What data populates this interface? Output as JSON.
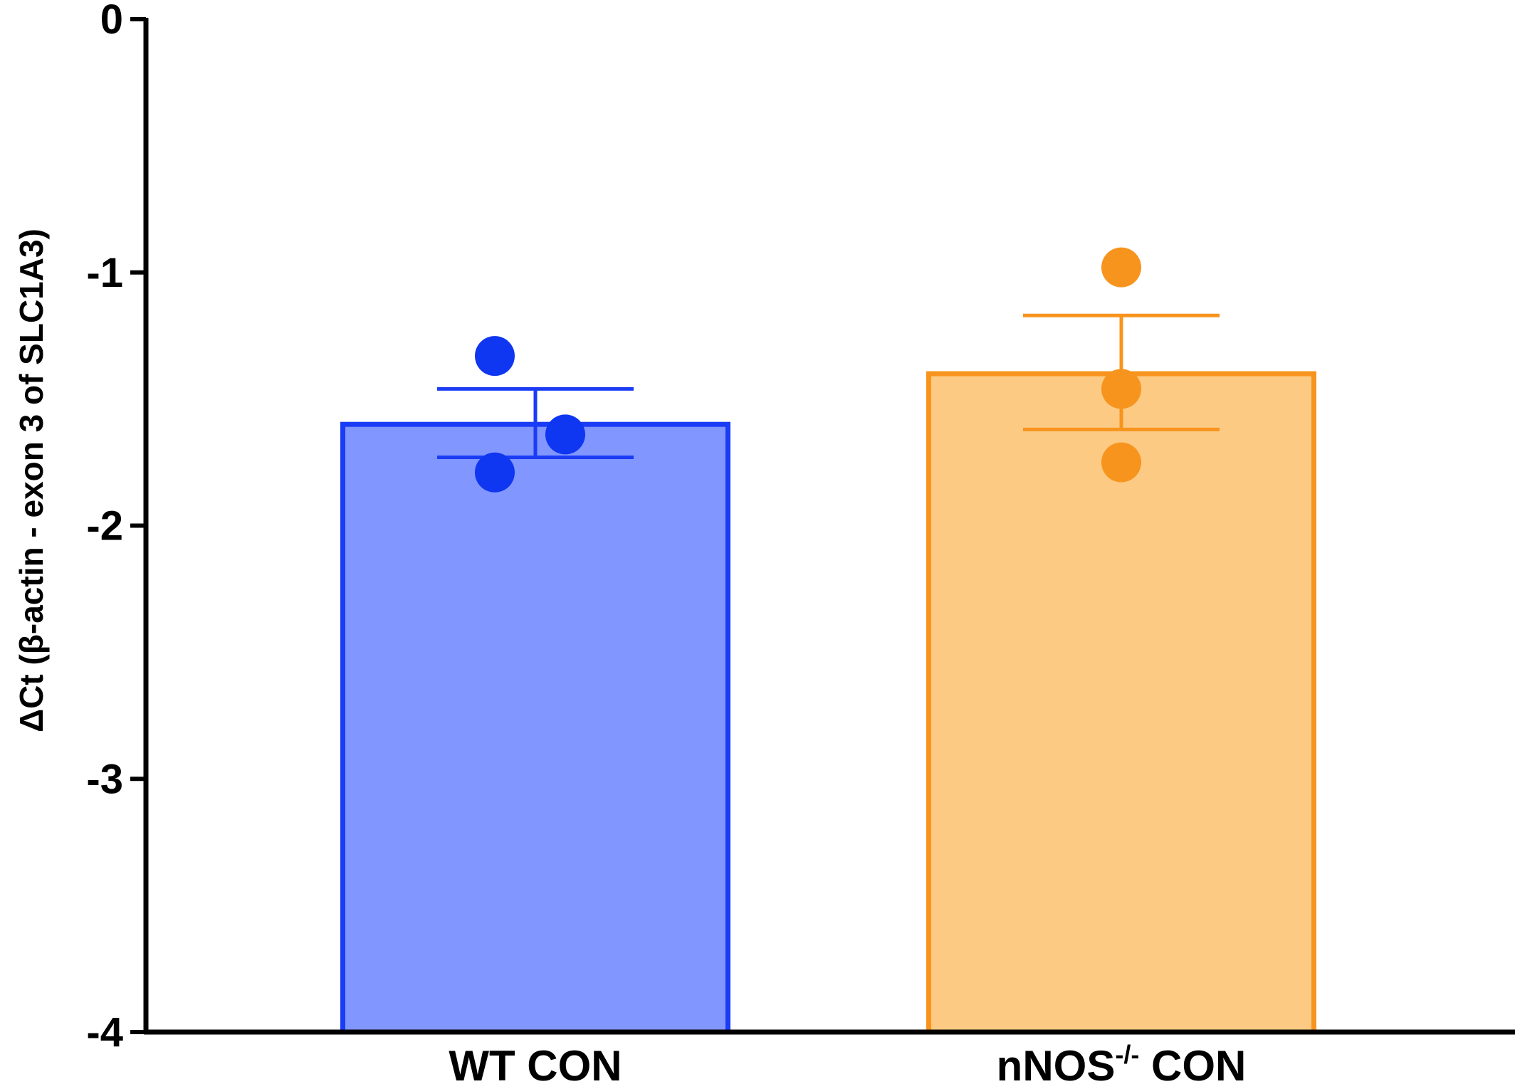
{
  "chart_data": {
    "type": "bar",
    "title": "",
    "xlabel": "",
    "ylabel": "ΔCt (β-actin - exon 3 of SLC1A3)",
    "ylim": [
      -4,
      0
    ],
    "yticks": [
      0,
      -1,
      -2,
      -3,
      -4
    ],
    "ytick_labels": [
      "0",
      "-1",
      "-2",
      "-3",
      "-4"
    ],
    "grid": false,
    "legend": "none",
    "categories": [
      {
        "label": "WT CON",
        "label_main": "WT CON",
        "label_sup": "",
        "label_after": ""
      },
      {
        "label": "nNOS-/- CON",
        "label_main": "nNOS",
        "label_sup": "-/-",
        "label_after": " CON"
      }
    ],
    "bars": [
      {
        "category": "WT CON",
        "mean": -1.6,
        "error_upper": -1.46,
        "error_lower": -1.73,
        "points": [
          -1.33,
          -1.64,
          -1.79
        ]
      },
      {
        "category": "nNOS-/- CON",
        "mean": -1.4,
        "error_upper": -1.17,
        "error_lower": -1.62,
        "points": [
          -0.98,
          -1.46,
          -1.75
        ]
      }
    ],
    "colors": {
      "WT CON": {
        "fill": "#8196FF",
        "stroke": "#1A3CF5",
        "point": "#0F36F0"
      },
      "nNOS-/- CON": {
        "fill": "#FDCA84",
        "stroke": "#F7941D",
        "point": "#F7941D"
      },
      "axis": "#000000"
    }
  }
}
